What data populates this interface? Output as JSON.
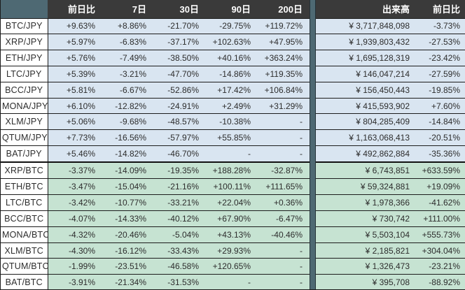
{
  "colors": {
    "header_dark": "#3a3a3a",
    "accent_teal": "#4e6973",
    "row_jpy_bg": "#d9e5f1",
    "row_btc_bg": "#c6e3d2",
    "pair_cell_bg": "#ffffff",
    "text": "#2d2d2d",
    "border": "#1c1c1c"
  },
  "table": {
    "columns": [
      "",
      "前日比",
      "7日",
      "30日",
      "90日",
      "200日",
      "出来高",
      "前日比"
    ],
    "rows": [
      {
        "pair": "BTC/JPY",
        "group": "jpy",
        "changes": [
          "+9.63%",
          "+8.86%",
          "-21.70%",
          "-29.75%",
          "+119.72%"
        ],
        "volume": "¥ 3,717,848,098",
        "day_change": "-3.73%"
      },
      {
        "pair": "XRP/JPY",
        "group": "jpy",
        "changes": [
          "+5.97%",
          "-6.83%",
          "-37.17%",
          "+102.63%",
          "+47.95%"
        ],
        "volume": "¥ 1,939,803,432",
        "day_change": "-27.53%"
      },
      {
        "pair": "ETH/JPY",
        "group": "jpy",
        "changes": [
          "+5.76%",
          "-7.49%",
          "-38.50%",
          "+40.16%",
          "+363.24%"
        ],
        "volume": "¥ 1,695,128,319",
        "day_change": "-23.42%"
      },
      {
        "pair": "LTC/JPY",
        "group": "jpy",
        "changes": [
          "+5.39%",
          "-3.21%",
          "-47.70%",
          "-14.86%",
          "+119.35%"
        ],
        "volume": "¥ 146,047,214",
        "day_change": "-27.59%"
      },
      {
        "pair": "BCC/JPY",
        "group": "jpy",
        "changes": [
          "+5.81%",
          "-6.67%",
          "-52.86%",
          "+17.42%",
          "+106.84%"
        ],
        "volume": "¥ 156,450,443",
        "day_change": "-19.85%"
      },
      {
        "pair": "MONA/JPY",
        "group": "jpy",
        "changes": [
          "+6.10%",
          "-12.82%",
          "-24.91%",
          "+2.49%",
          "+31.29%"
        ],
        "volume": "¥ 415,593,902",
        "day_change": "+7.60%"
      },
      {
        "pair": "XLM/JPY",
        "group": "jpy",
        "changes": [
          "+5.06%",
          "-9.68%",
          "-48.57%",
          "-10.38%",
          "-"
        ],
        "volume": "¥ 804,285,409",
        "day_change": "-14.84%"
      },
      {
        "pair": "QTUM/JPY",
        "group": "jpy",
        "changes": [
          "+7.73%",
          "-16.56%",
          "-57.97%",
          "+55.85%",
          "-"
        ],
        "volume": "¥ 1,163,068,413",
        "day_change": "-20.51%"
      },
      {
        "pair": "BAT/JPY",
        "group": "jpy",
        "changes": [
          "+5.46%",
          "-14.82%",
          "-46.70%",
          "-",
          "-"
        ],
        "volume": "¥ 492,862,884",
        "day_change": "-35.36%"
      },
      {
        "pair": "XRP/BTC",
        "group": "btc",
        "changes": [
          "-3.37%",
          "-14.09%",
          "-19.35%",
          "+188.28%",
          "-32.87%"
        ],
        "volume": "¥ 6,743,851",
        "day_change": "+633.59%"
      },
      {
        "pair": "ETH/BTC",
        "group": "btc",
        "changes": [
          "-3.47%",
          "-15.04%",
          "-21.16%",
          "+100.11%",
          "+111.65%"
        ],
        "volume": "¥ 59,324,881",
        "day_change": "+19.09%"
      },
      {
        "pair": "LTC/BTC",
        "group": "btc",
        "changes": [
          "-3.42%",
          "-10.77%",
          "-33.21%",
          "+22.04%",
          "+0.36%"
        ],
        "volume": "¥ 1,978,366",
        "day_change": "-41.62%"
      },
      {
        "pair": "BCC/BTC",
        "group": "btc",
        "changes": [
          "-4.07%",
          "-14.33%",
          "-40.12%",
          "+67.90%",
          "-6.47%"
        ],
        "volume": "¥ 730,742",
        "day_change": "+111.00%"
      },
      {
        "pair": "MONA/BTC",
        "group": "btc",
        "changes": [
          "-4.32%",
          "-20.46%",
          "-5.04%",
          "+43.13%",
          "-40.46%"
        ],
        "volume": "¥ 5,503,104",
        "day_change": "+555.73%"
      },
      {
        "pair": "XLM/BTC",
        "group": "btc",
        "changes": [
          "-4.30%",
          "-16.12%",
          "-33.43%",
          "+29.93%",
          "-"
        ],
        "volume": "¥ 2,185,821",
        "day_change": "+304.04%"
      },
      {
        "pair": "QTUM/BTC",
        "group": "btc",
        "changes": [
          "-1.99%",
          "-23.51%",
          "-46.58%",
          "+120.65%",
          "-"
        ],
        "volume": "¥ 1,326,473",
        "day_change": "-23.21%"
      },
      {
        "pair": "BAT/BTC",
        "group": "btc",
        "changes": [
          "-3.91%",
          "-21.34%",
          "-31.53%",
          "-",
          "-"
        ],
        "volume": "¥ 395,708",
        "day_change": "-88.92%"
      }
    ]
  }
}
